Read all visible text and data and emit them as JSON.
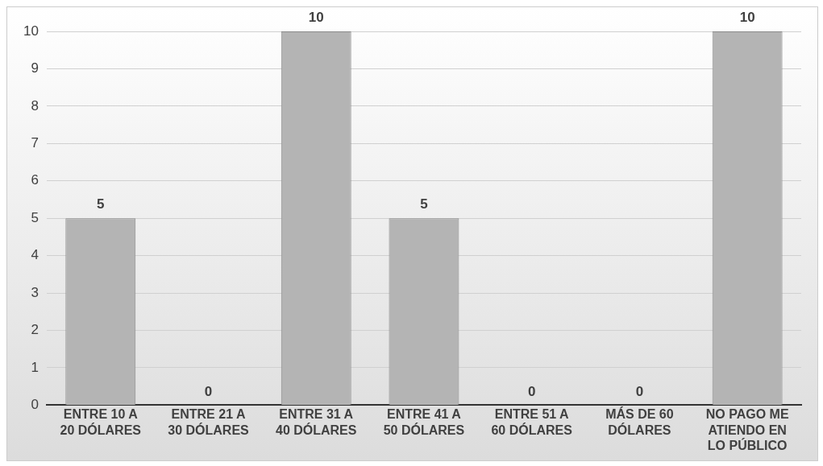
{
  "chart_data": {
    "type": "bar",
    "categories": [
      "ENTRE 10 A 20 DÓLARES",
      "ENTRE 21 A 30 DÓLARES",
      "ENTRE 31 A 40 DÓLARES",
      "ENTRE 41 A 50 DÓLARES",
      "ENTRE 51 A 60 DÓLARES",
      "MÁS DE 60 DÓLARES",
      "NO PAGO ME ATIENDO EN LO PÚBLICO"
    ],
    "values": [
      5,
      0,
      10,
      5,
      0,
      0,
      10
    ],
    "color": "#b4b4b4",
    "ylim": [
      0,
      10
    ],
    "yticks": [
      0,
      1,
      2,
      3,
      4,
      5,
      6,
      7,
      8,
      9,
      10
    ],
    "grid": "y",
    "data_labels": true,
    "legend": false
  }
}
